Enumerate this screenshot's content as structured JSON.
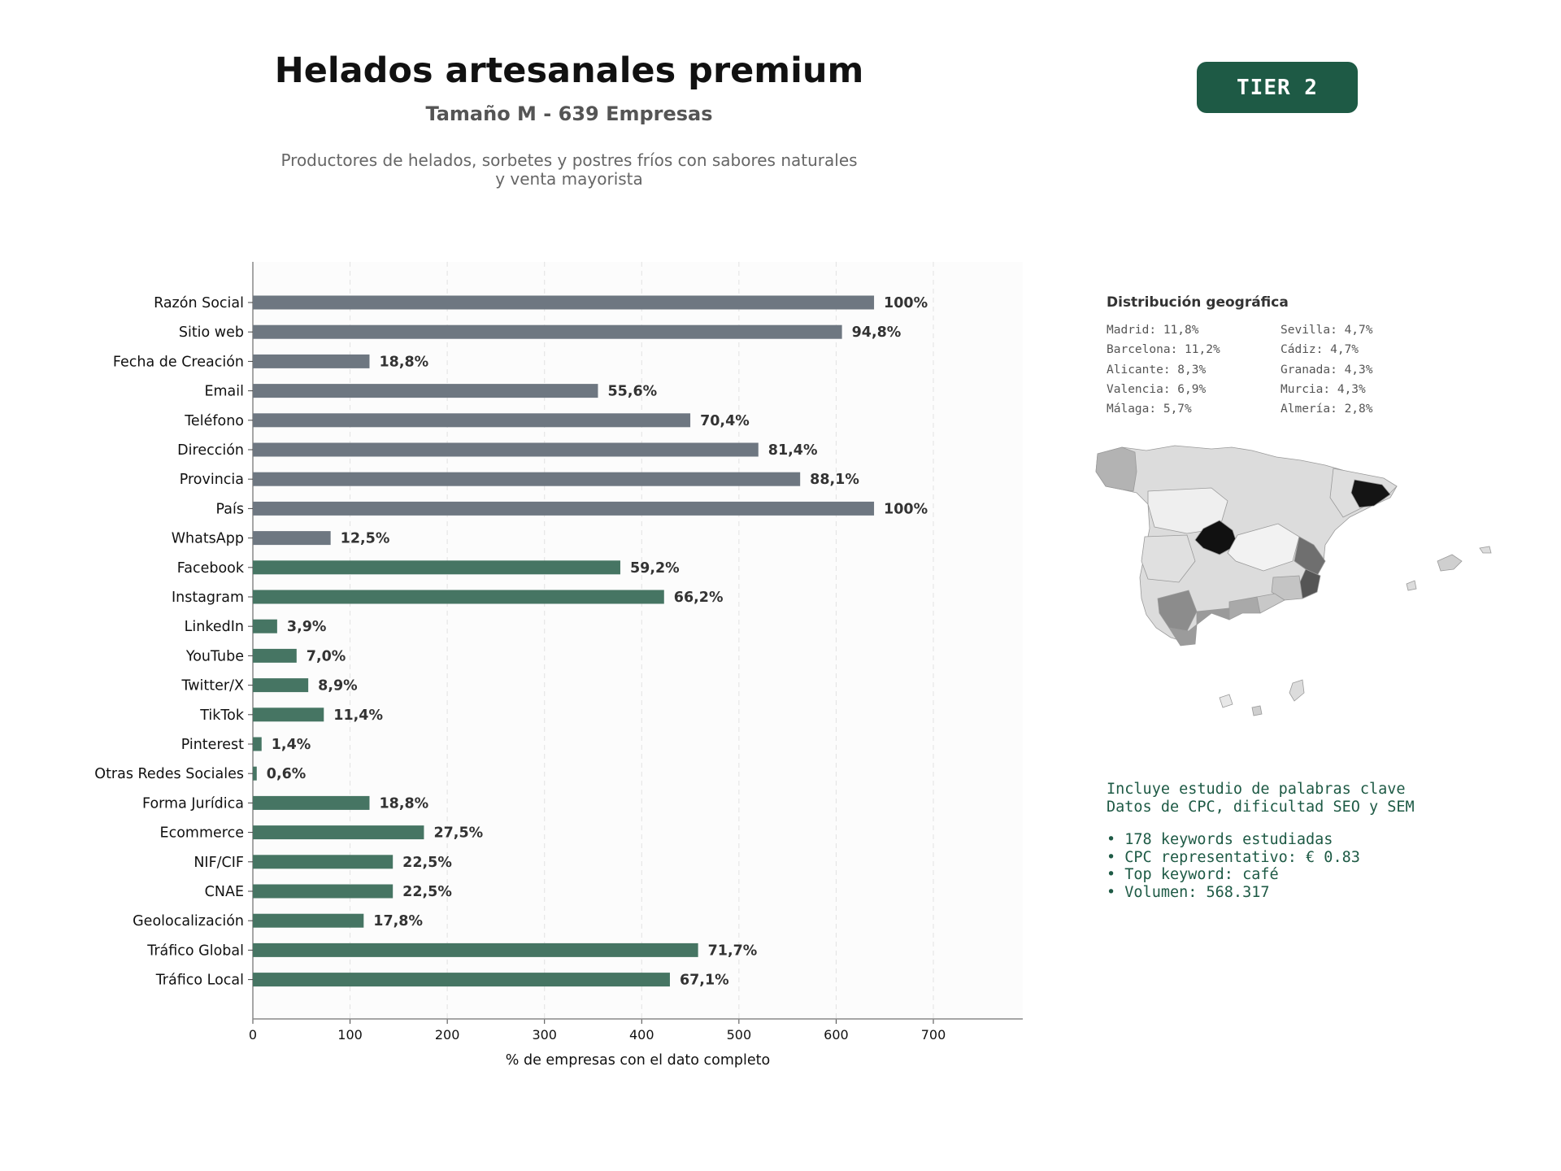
{
  "header": {
    "title": "Helados artesanales premium",
    "subtitle": "Tamaño M - 639 Empresas",
    "description_line1": "Productores de helados, sorbetes y postres fríos con sabores naturales",
    "description_line2": "y venta mayorista",
    "tier_badge": "TIER 2"
  },
  "colors": {
    "base_bar": "#6e7781",
    "social_bar": "#467563",
    "accent": "#1e5a45"
  },
  "chart_data": {
    "type": "bar",
    "orientation": "horizontal",
    "xlabel": "% de empresas con el dato completo",
    "ylabel": "",
    "xlim": [
      0,
      800
    ],
    "xticks": [
      0,
      100,
      200,
      300,
      400,
      500,
      600,
      700
    ],
    "grid": "vertical dashed",
    "categories": [
      "Razón Social",
      "Sitio web",
      "Fecha de Creación",
      "Email",
      "Teléfono",
      "Dirección",
      "Provincia",
      "País",
      "WhatsApp",
      "Facebook",
      "Instagram",
      "LinkedIn",
      "YouTube",
      "Twitter/X",
      "TikTok",
      "Pinterest",
      "Otras Redes Sociales",
      "Forma Jurídica",
      "Ecommerce",
      "NIF/CIF",
      "CNAE",
      "Geolocalización",
      "Tráfico Global",
      "Tráfico Local"
    ],
    "values": [
      639,
      606,
      120,
      355,
      450,
      520,
      563,
      639,
      80,
      378,
      423,
      25,
      45,
      57,
      73,
      9,
      4,
      120,
      176,
      144,
      144,
      114,
      458,
      429
    ],
    "labels": [
      "100%",
      "94,8%",
      "18,8%",
      "55,6%",
      "70,4%",
      "81,4%",
      "88,1%",
      "100%",
      "12,5%",
      "59,2%",
      "66,2%",
      "3,9%",
      "7,0%",
      "8,9%",
      "11,4%",
      "1,4%",
      "0,6%",
      "18,8%",
      "27,5%",
      "22,5%",
      "22,5%",
      "17,8%",
      "71,7%",
      "67,1%"
    ],
    "groups": [
      "base",
      "base",
      "base",
      "base",
      "base",
      "base",
      "base",
      "base",
      "base",
      "social",
      "social",
      "social",
      "social",
      "social",
      "social",
      "social",
      "social",
      "social",
      "social",
      "social",
      "social",
      "social",
      "social",
      "social"
    ]
  },
  "geo": {
    "title": "Distribución geográfica",
    "items": [
      "Madrid: 11,8%",
      "Sevilla: 4,7%",
      "Barcelona: 11,2%",
      "Cádiz: 4,7%",
      "Alicante: 8,3%",
      "Granada: 4,3%",
      "Valencia: 6,9%",
      "Murcia: 4,3%",
      "Málaga: 5,7%",
      "Almería: 2,8%"
    ]
  },
  "keywords": {
    "line1": "Incluye estudio de palabras clave",
    "line2": "Datos de CPC, dificultad SEO y SEM",
    "bullets": [
      "• 178 keywords estudiadas",
      "• CPC representativo: € 0.83",
      "• Top keyword: café",
      "• Volumen: 568.317"
    ]
  }
}
